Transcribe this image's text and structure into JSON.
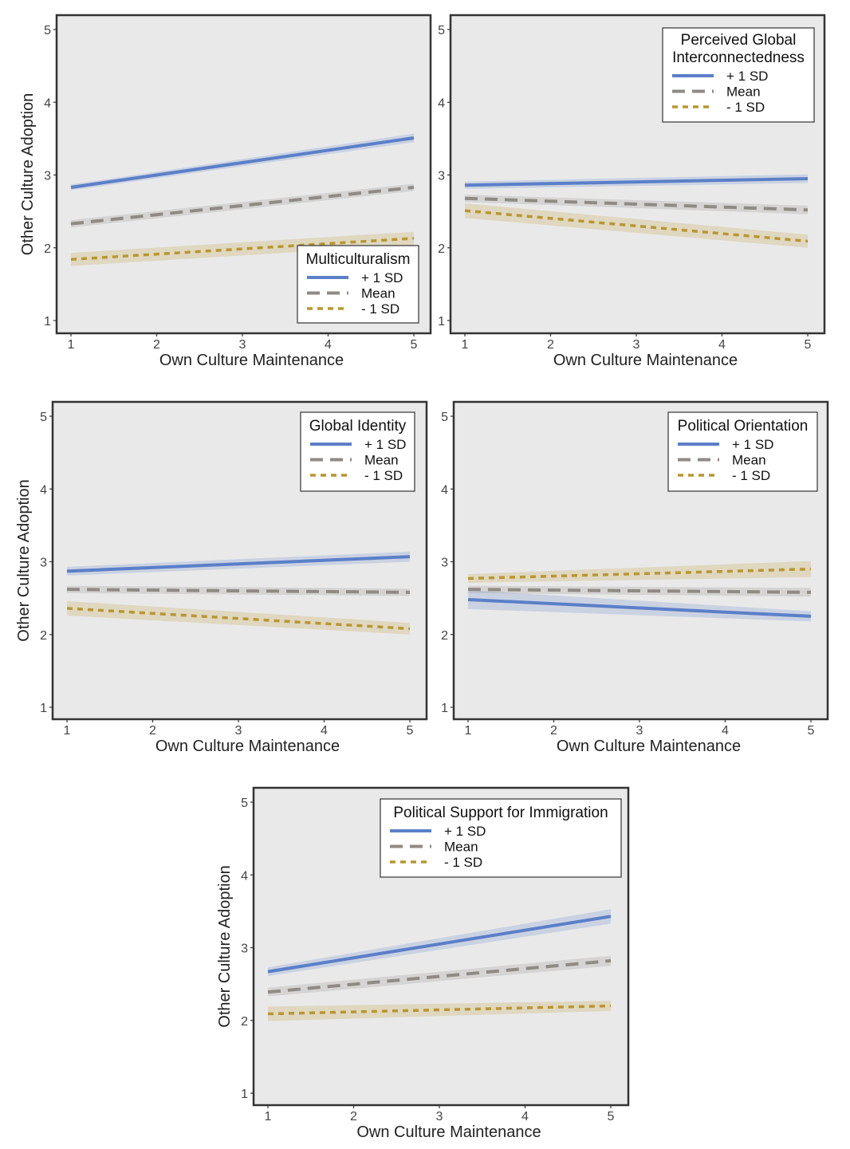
{
  "figure": {
    "shared": {
      "xlabel": "Own Culture Maintenance",
      "ylabel": "Other Culture Adoption",
      "x_ticks": [
        "1",
        "2",
        "3",
        "4",
        "5"
      ],
      "y_ticks": [
        "1",
        "2",
        "3",
        "4",
        "5"
      ],
      "legend_labels": [
        "+ 1 SD",
        "Mean",
        "- 1 SD"
      ]
    },
    "colors": {
      "panel_bg": "#e9e9e9",
      "plus_sd": "#5b7fc8",
      "mean": "#8f8a84",
      "minus_sd": "#b9962e",
      "frame": "#333333"
    }
  },
  "chart_data": [
    {
      "type": "line",
      "title": "Multiculturalism",
      "xlabel": "Own Culture Maintenance",
      "ylabel": "Other Culture Adoption",
      "xlim": [
        1,
        5
      ],
      "ylim": [
        1,
        5
      ],
      "legend_position": "bottom-right",
      "show_ylabel": true,
      "series": [
        {
          "name": "+ 1 SD",
          "x": [
            1,
            5
          ],
          "y": [
            2.83,
            3.51
          ],
          "ci": [
            0.04,
            0.06
          ]
        },
        {
          "name": "Mean",
          "x": [
            1,
            5
          ],
          "y": [
            2.33,
            2.83
          ],
          "ci": [
            0.05,
            0.05
          ]
        },
        {
          "name": "- 1 SD",
          "x": [
            1,
            5
          ],
          "y": [
            1.84,
            2.13
          ],
          "ci": [
            0.09,
            0.09
          ]
        }
      ]
    },
    {
      "type": "line",
      "title": "Perceived Global Interconnectedness",
      "title_lines": [
        "Perceived Global",
        "Interconnectedness"
      ],
      "xlabel": "Own Culture Maintenance",
      "ylabel": "",
      "xlim": [
        1,
        5
      ],
      "ylim": [
        1,
        5
      ],
      "legend_position": "top-right",
      "show_ylabel": false,
      "series": [
        {
          "name": "+ 1 SD",
          "x": [
            1,
            5
          ],
          "y": [
            2.86,
            2.95
          ],
          "ci": [
            0.05,
            0.06
          ]
        },
        {
          "name": "Mean",
          "x": [
            1,
            5
          ],
          "y": [
            2.68,
            2.52
          ],
          "ci": [
            0.05,
            0.06
          ]
        },
        {
          "name": "- 1 SD",
          "x": [
            1,
            5
          ],
          "y": [
            2.51,
            2.09
          ],
          "ci": [
            0.1,
            0.09
          ]
        }
      ]
    },
    {
      "type": "line",
      "title": "Global Identity",
      "xlabel": "Own Culture Maintenance",
      "ylabel": "Other Culture Adoption",
      "xlim": [
        1,
        5
      ],
      "ylim": [
        1,
        5
      ],
      "legend_position": "top-right",
      "show_ylabel": true,
      "series": [
        {
          "name": "+ 1 SD",
          "x": [
            1,
            5
          ],
          "y": [
            2.87,
            3.07
          ],
          "ci": [
            0.06,
            0.07
          ]
        },
        {
          "name": "Mean",
          "x": [
            1,
            5
          ],
          "y": [
            2.62,
            2.58
          ],
          "ci": [
            0.05,
            0.05
          ]
        },
        {
          "name": "- 1 SD",
          "x": [
            1,
            5
          ],
          "y": [
            2.36,
            2.08
          ],
          "ci": [
            0.1,
            0.08
          ]
        }
      ]
    },
    {
      "type": "line",
      "title": "Political Orientation",
      "xlabel": "Own Culture Maintenance",
      "ylabel": "",
      "xlim": [
        1,
        5
      ],
      "ylim": [
        1,
        5
      ],
      "legend_position": "top-right",
      "show_ylabel": false,
      "series": [
        {
          "name": "+ 1 SD",
          "x": [
            1,
            5
          ],
          "y": [
            2.48,
            2.25
          ],
          "ci": [
            0.13,
            0.07
          ]
        },
        {
          "name": "Mean",
          "x": [
            1,
            5
          ],
          "y": [
            2.62,
            2.58
          ],
          "ci": [
            0.05,
            0.06
          ]
        },
        {
          "name": "- 1 SD",
          "x": [
            1,
            5
          ],
          "y": [
            2.77,
            2.9
          ],
          "ci": [
            0.06,
            0.11
          ]
        }
      ]
    },
    {
      "type": "line",
      "title": "Political Support for Immigration",
      "xlabel": "Own Culture Maintenance",
      "ylabel": "Other Culture Adoption",
      "xlim": [
        1,
        5
      ],
      "ylim": [
        1,
        5
      ],
      "legend_position": "top-right",
      "show_ylabel": true,
      "series": [
        {
          "name": "+ 1 SD",
          "x": [
            1,
            5
          ],
          "y": [
            2.67,
            3.43
          ],
          "ci": [
            0.06,
            0.1
          ]
        },
        {
          "name": "Mean",
          "x": [
            1,
            5
          ],
          "y": [
            2.39,
            2.82
          ],
          "ci": [
            0.06,
            0.07
          ]
        },
        {
          "name": "- 1 SD",
          "x": [
            1,
            5
          ],
          "y": [
            2.09,
            2.2
          ],
          "ci": [
            0.1,
            0.07
          ]
        }
      ]
    }
  ]
}
